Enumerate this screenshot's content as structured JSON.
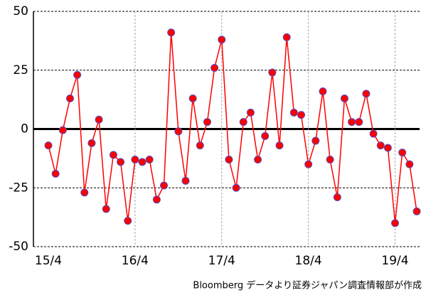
{
  "chart_data": {
    "type": "line",
    "categories": [
      "15/4",
      null,
      null,
      null,
      null,
      null,
      null,
      null,
      null,
      null,
      null,
      null,
      "16/4",
      null,
      null,
      null,
      null,
      null,
      null,
      null,
      null,
      null,
      null,
      null,
      "17/4",
      null,
      null,
      null,
      null,
      null,
      null,
      null,
      null,
      null,
      null,
      null,
      "18/4",
      null,
      null,
      null,
      null,
      null,
      null,
      null,
      null,
      null,
      null,
      null,
      "19/4",
      null,
      null,
      null
    ],
    "series": [
      {
        "color": "#ff0000",
        "marker_edge": "#5050c0",
        "values": [
          -7,
          -19,
          -0.5,
          13,
          23,
          -27,
          -6,
          4,
          -34,
          -11,
          -14,
          -39,
          -13,
          -14,
          -13,
          -30,
          -24,
          41,
          -1,
          -22,
          13,
          -7,
          3,
          26,
          38,
          -13,
          -25,
          3,
          7,
          -13,
          -3,
          24,
          -7,
          39,
          7,
          6,
          -15,
          -5,
          16,
          -13,
          -29,
          13,
          3,
          3,
          15,
          -2,
          -7,
          -8,
          -40,
          -10,
          -15,
          -35
        ]
      }
    ],
    "ylim": [
      -50,
      50
    ],
    "yticks": [
      50,
      25,
      0,
      -25,
      -50
    ],
    "grid": true,
    "note": "Bloomberg データより証券ジャパン調査情報部が作成"
  }
}
